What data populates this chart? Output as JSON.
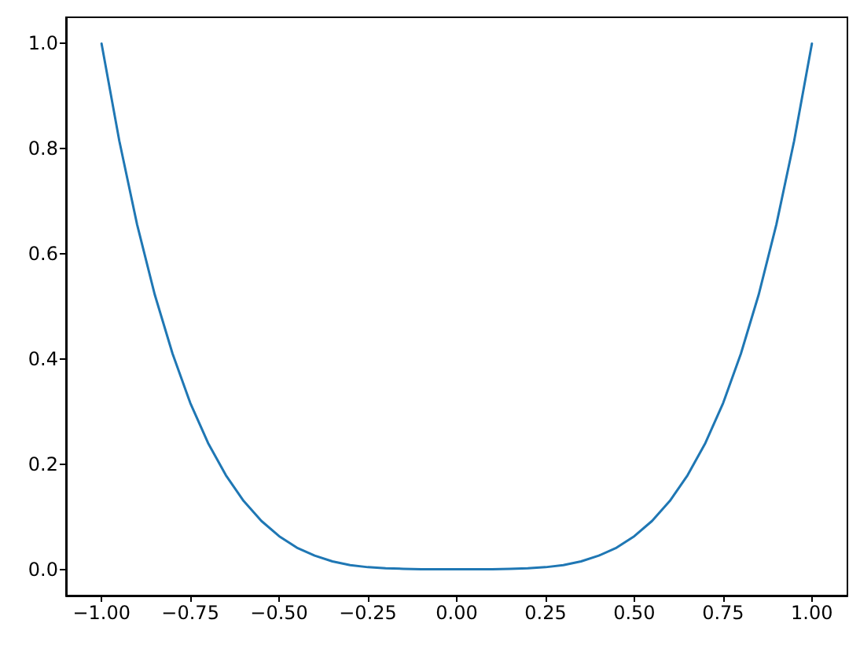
{
  "chart_data": {
    "type": "line",
    "x": [
      -1,
      -0.95,
      -0.9,
      -0.85,
      -0.8,
      -0.75,
      -0.7,
      -0.65,
      -0.6,
      -0.55,
      -0.5,
      -0.45,
      -0.4,
      -0.35,
      -0.3,
      -0.25,
      -0.2,
      -0.15,
      -0.1,
      -0.05,
      0,
      0.05,
      0.1,
      0.15,
      0.2,
      0.25,
      0.3,
      0.35,
      0.4,
      0.45,
      0.5,
      0.55,
      0.6,
      0.65,
      0.7,
      0.75,
      0.8,
      0.85,
      0.9,
      0.95,
      1
    ],
    "values": [
      1,
      0.815,
      0.656,
      0.522,
      0.41,
      0.316,
      0.24,
      0.179,
      0.13,
      0.092,
      0.063,
      0.041,
      0.026,
      0.015,
      0.008,
      0.004,
      0.002,
      0.001,
      0,
      0,
      0,
      0,
      0,
      0.001,
      0.002,
      0.004,
      0.008,
      0.015,
      0.026,
      0.041,
      0.063,
      0.092,
      0.13,
      0.179,
      0.24,
      0.316,
      0.41,
      0.522,
      0.656,
      0.815,
      1
    ],
    "color": "#1f77b4",
    "xlim": [
      -1.1,
      1.1
    ],
    "ylim": [
      -0.05,
      1.05
    ],
    "xticks": [
      {
        "value": -1,
        "label": "−1.00"
      },
      {
        "value": -0.75,
        "label": "−0.75"
      },
      {
        "value": -0.5,
        "label": "−0.50"
      },
      {
        "value": -0.25,
        "label": "−0.25"
      },
      {
        "value": 0,
        "label": "0.00"
      },
      0.25,
      {
        "value": 0.5,
        "label": "0.50"
      },
      0.75,
      {
        "value": 1,
        "label": "1.00"
      }
    ],
    "yticks": [
      {
        "value": 0,
        "label": "0.0"
      },
      0.2,
      0.4,
      0.6,
      0.8,
      {
        "value": 1,
        "label": "1.0"
      }
    ],
    "grid": false
  }
}
